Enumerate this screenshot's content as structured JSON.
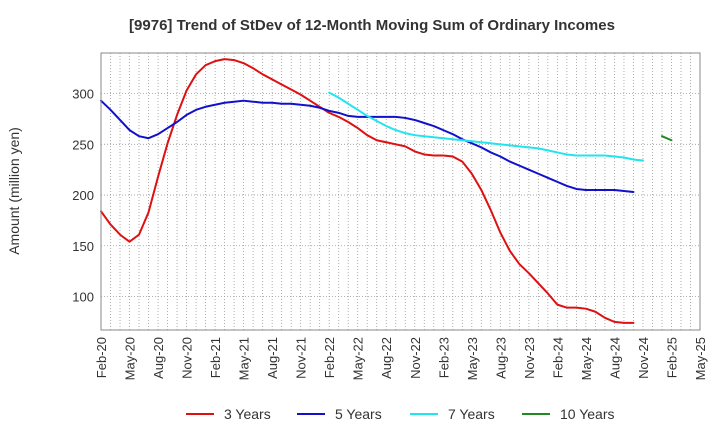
{
  "chart_data": {
    "type": "line",
    "title": "[9976]  Trend of StDev of 12-Month Moving Sum of Ordinary Incomes",
    "xlabel": "",
    "ylabel": "Amount (million yen)",
    "ylim": [
      67,
      340
    ],
    "yticks": [
      100,
      150,
      200,
      250,
      300
    ],
    "xlim": [
      "Feb-20",
      "May-25"
    ],
    "x_tick_labels": [
      "Feb-20",
      "May-20",
      "Aug-20",
      "Nov-20",
      "Feb-21",
      "May-21",
      "Aug-21",
      "Nov-21",
      "Feb-22",
      "May-22",
      "Aug-22",
      "Nov-22",
      "Feb-23",
      "May-23",
      "Aug-23",
      "Nov-23",
      "Feb-24",
      "May-24",
      "Aug-24",
      "Nov-24",
      "Feb-25",
      "May-25"
    ],
    "grid": true,
    "legend_position": "bottom",
    "series": [
      {
        "name": "3 Years",
        "color": "#dd1111",
        "start": "Feb-20",
        "values": [
          184,
          171,
          161,
          154,
          161,
          183,
          218,
          251,
          279,
          303,
          319,
          328,
          332,
          334,
          333,
          330,
          325,
          319,
          314,
          309,
          304,
          299,
          293,
          287,
          281,
          277,
          272,
          266,
          259,
          254,
          252,
          250,
          248,
          243,
          240,
          239,
          239,
          238,
          233,
          221,
          205,
          185,
          163,
          145,
          132,
          123,
          113,
          103,
          92,
          89,
          89,
          88,
          85,
          79,
          75,
          74,
          74
        ]
      },
      {
        "name": "5 Years",
        "color": "#1111cc",
        "start": "Feb-20",
        "values": [
          293,
          284,
          274,
          264,
          258,
          256,
          260,
          266,
          272,
          279,
          284,
          287,
          289,
          291,
          292,
          293,
          292,
          291,
          291,
          290,
          290,
          289,
          288,
          286,
          283,
          281,
          278,
          277,
          277,
          277,
          277,
          277,
          276,
          274,
          271,
          268,
          264,
          260,
          255,
          251,
          247,
          242,
          238,
          233,
          229,
          225,
          221,
          217,
          213,
          209,
          206,
          205,
          205,
          205,
          205,
          204,
          203
        ]
      },
      {
        "name": "7 Years",
        "color": "#22e4ef",
        "start": "Feb-22",
        "values": [
          301,
          296,
          290,
          284,
          278,
          273,
          268,
          264,
          261,
          259,
          258,
          257,
          256,
          255,
          254,
          253,
          252,
          251,
          250,
          249,
          248,
          247,
          246,
          244,
          242,
          240,
          239,
          239,
          239,
          239,
          238,
          237,
          235,
          234
        ]
      },
      {
        "name": "10 Years",
        "color": "#228822",
        "start": "Jan-25",
        "values": [
          258,
          254
        ]
      }
    ]
  }
}
